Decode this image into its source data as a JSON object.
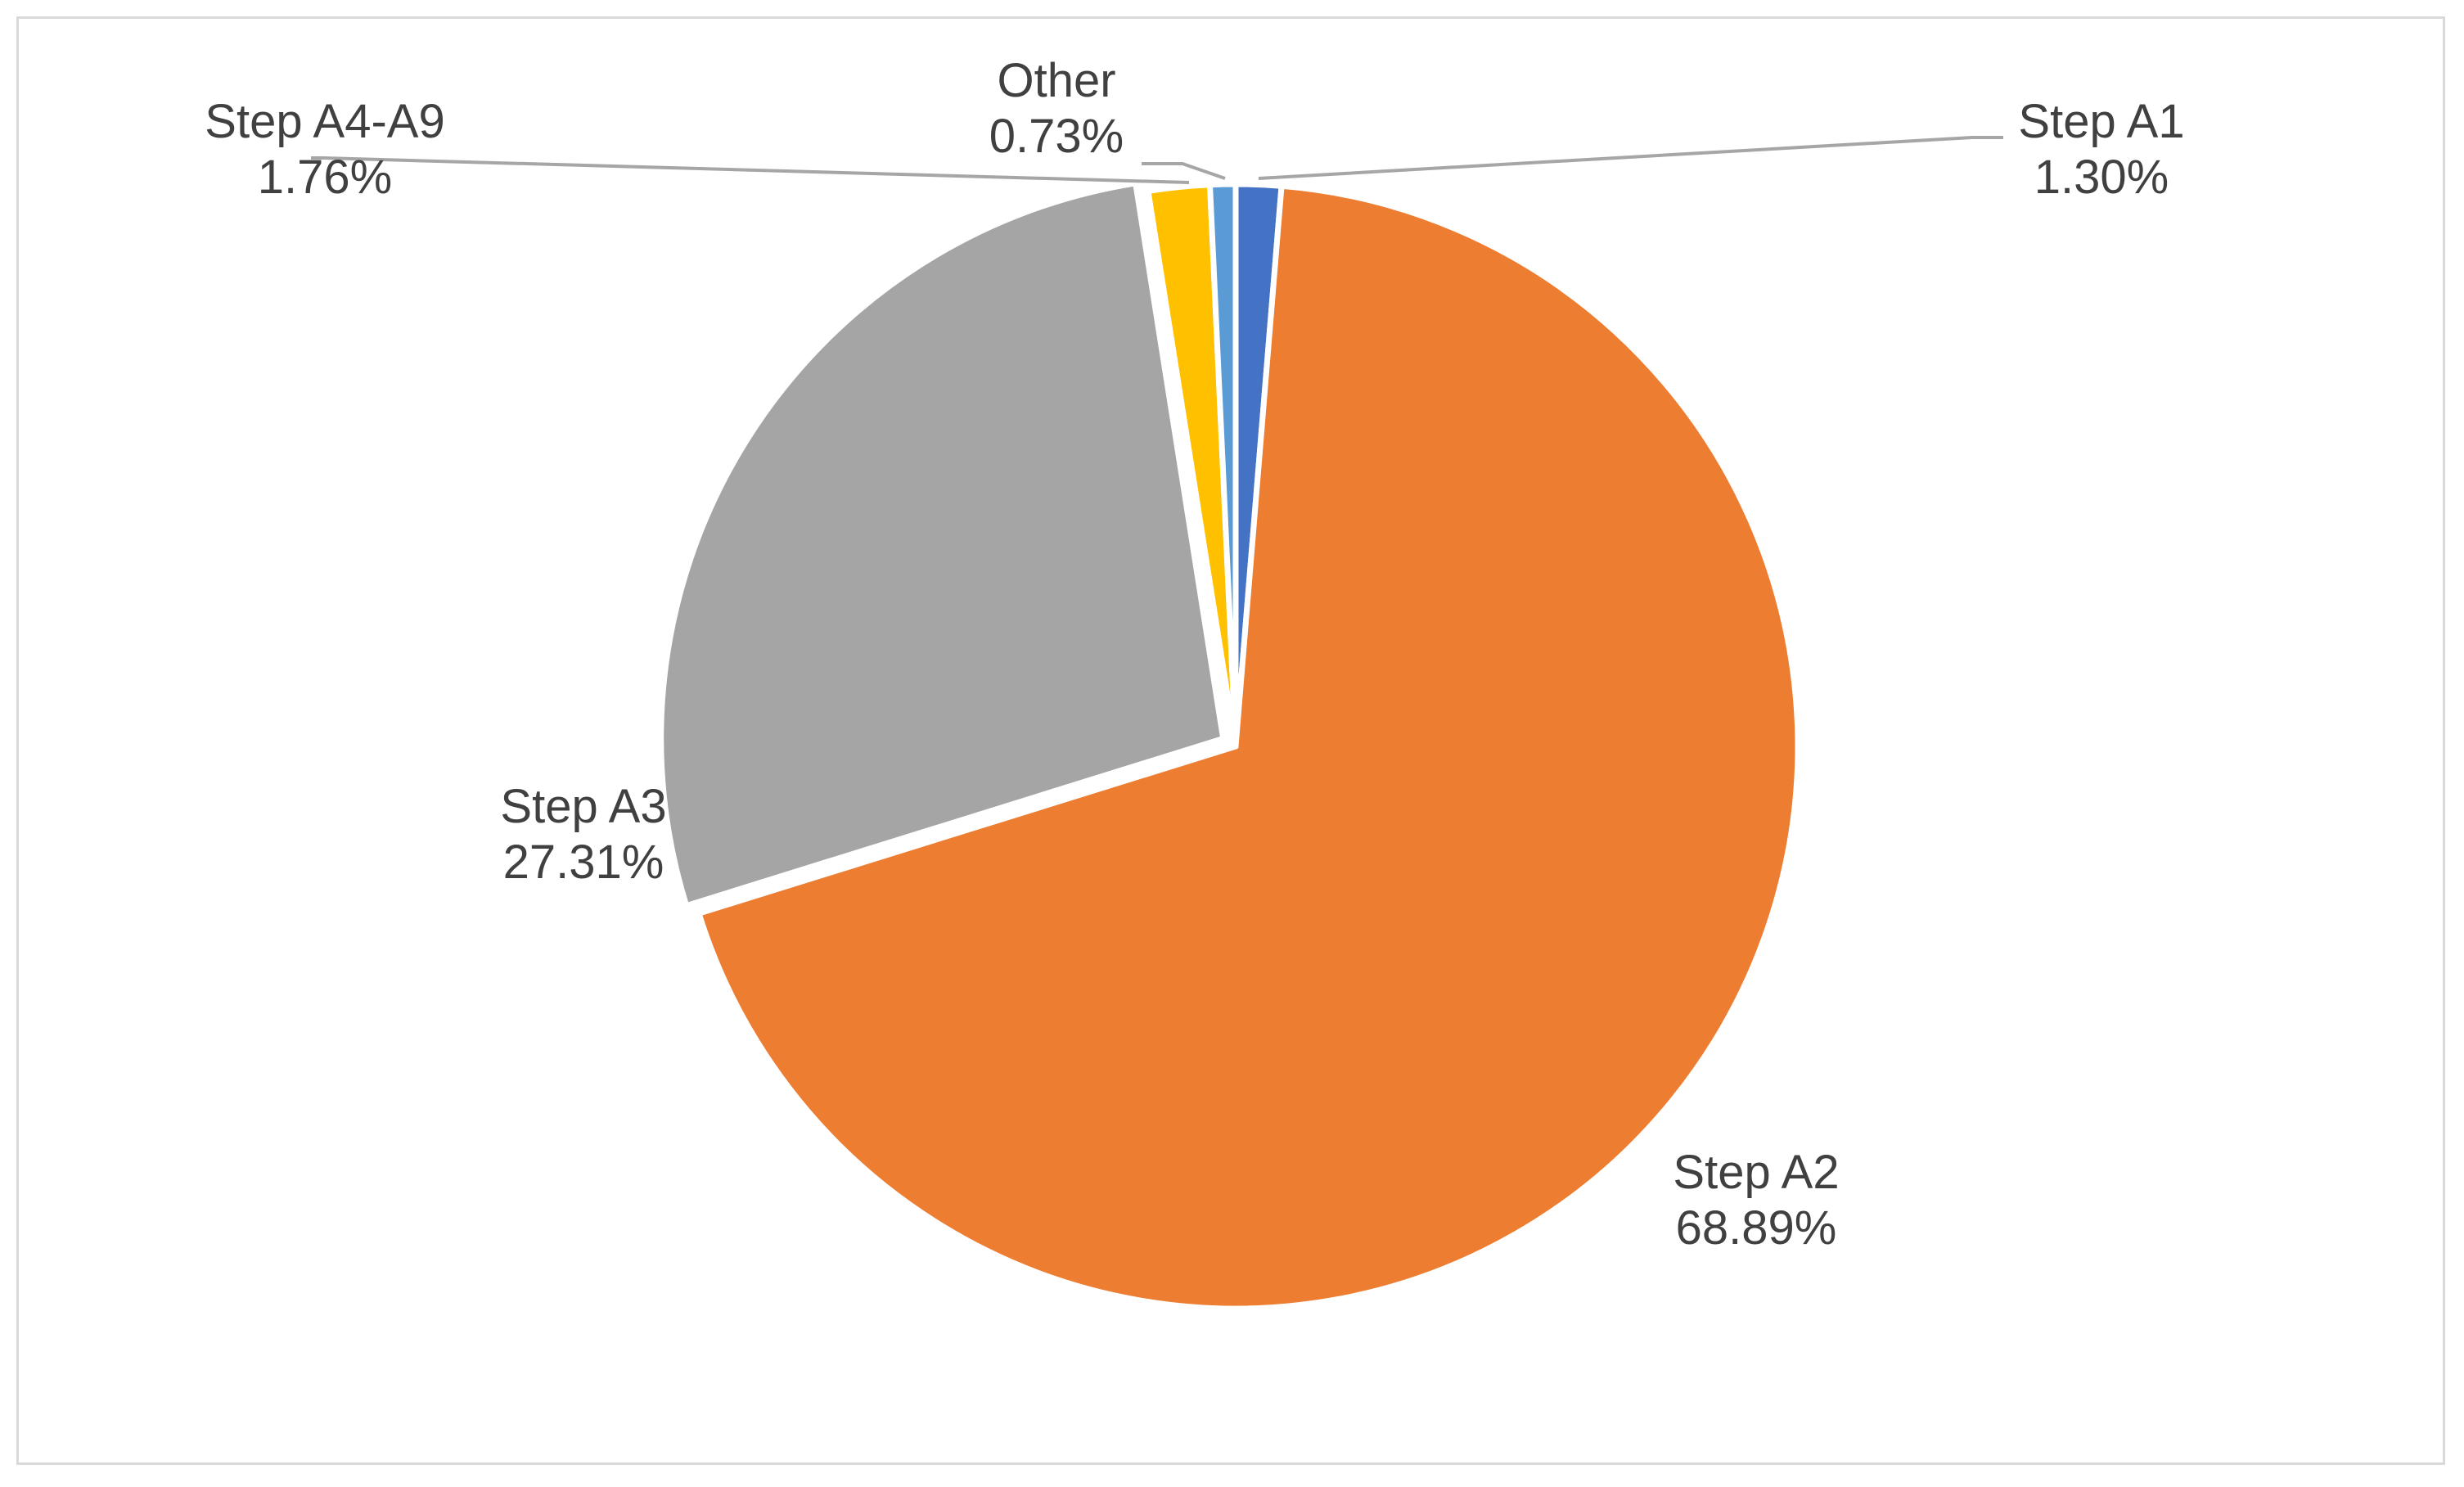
{
  "chart_data": {
    "type": "pie",
    "title": "",
    "start_angle_deg": 0,
    "direction": "clockwise",
    "slices": [
      {
        "name": "Step A1",
        "value": 1.3,
        "label": "1.30%",
        "color": "#4472C4"
      },
      {
        "name": "Step A2",
        "value": 68.89,
        "label": "68.89%",
        "color": "#ED7D31"
      },
      {
        "name": "Step A3",
        "value": 27.31,
        "label": "27.31%",
        "color": "#A5A5A5"
      },
      {
        "name": "Step A4-A9",
        "value": 1.76,
        "label": "1.76%",
        "color": "#FFC000"
      },
      {
        "name": "Other",
        "value": 0.73,
        "label": "0.73%",
        "color": "#5B9BD5"
      }
    ],
    "legend": "none",
    "data_labels": "category and percentage with leader lines"
  }
}
